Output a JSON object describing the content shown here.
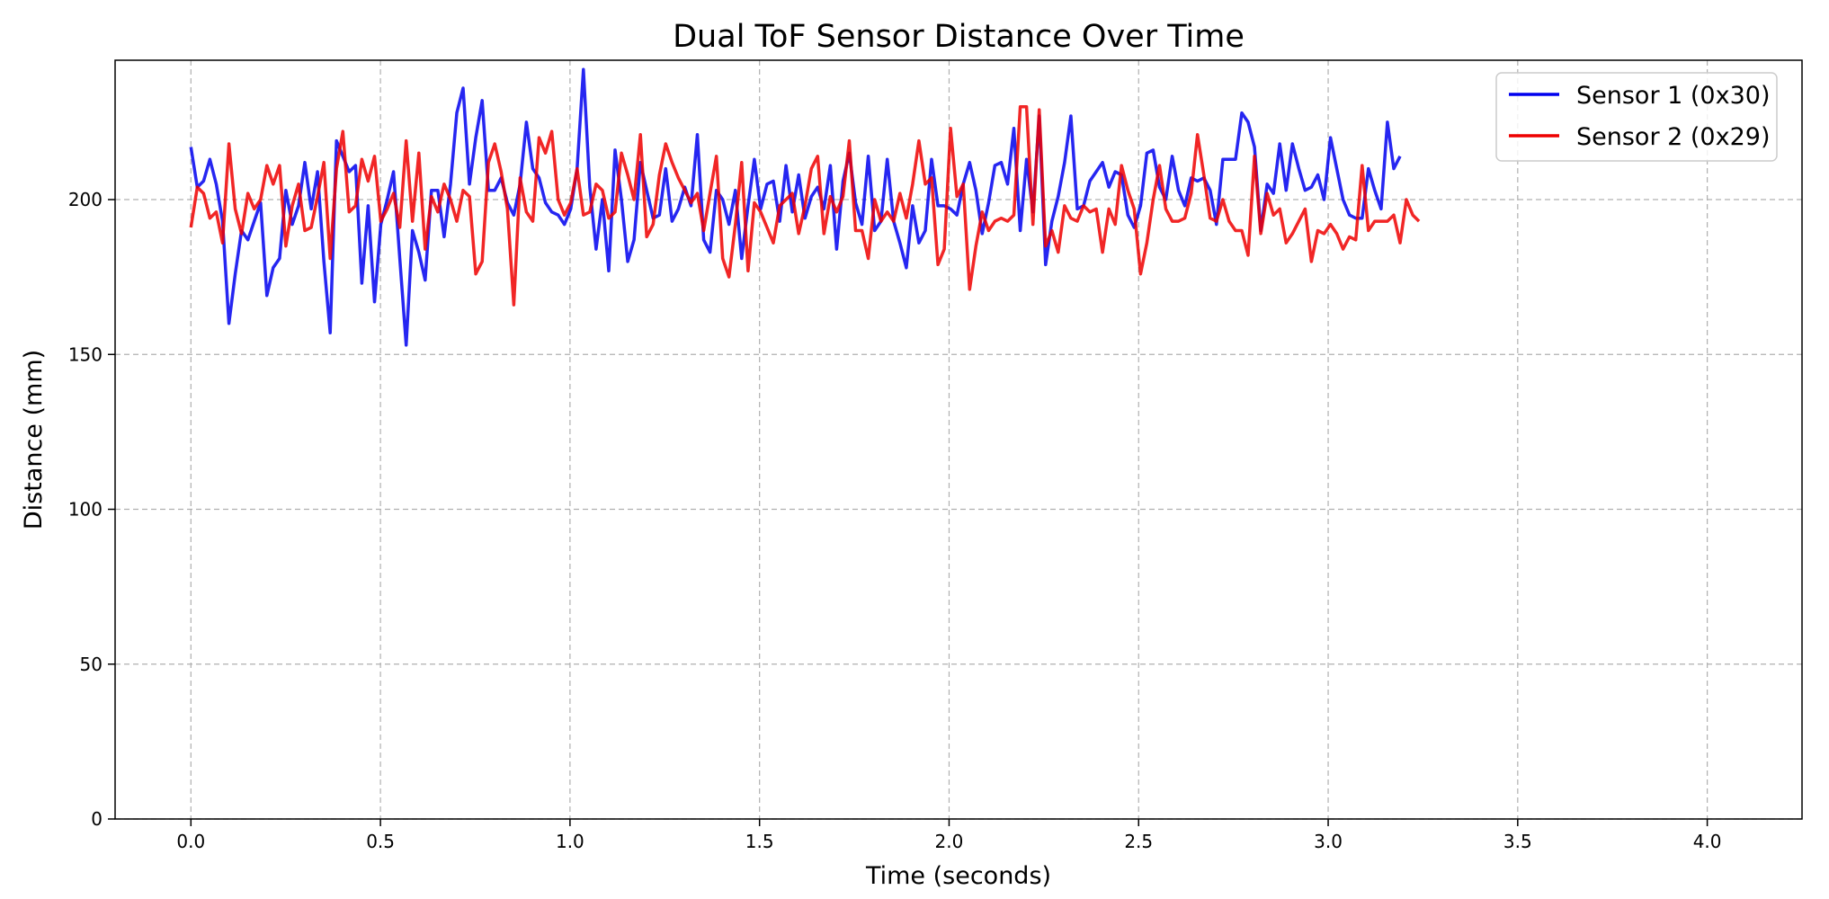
{
  "chart_data": {
    "type": "line",
    "title": "Dual ToF Sensor Distance Over Time",
    "xlabel": "Time (seconds)",
    "ylabel": "Distance (mm)",
    "xlim": [
      -0.2,
      4.25
    ],
    "ylim": [
      0,
      245
    ],
    "xticks": [
      0.0,
      0.5,
      1.0,
      1.5,
      2.0,
      2.5,
      3.0,
      3.5,
      4.0
    ],
    "xtick_labels": [
      "0.0",
      "0.5",
      "1.0",
      "1.5",
      "2.0",
      "2.5",
      "3.0",
      "3.5",
      "4.0"
    ],
    "yticks": [
      0,
      50,
      100,
      150,
      200
    ],
    "ytick_labels": [
      "0",
      "50",
      "100",
      "150",
      "200"
    ],
    "grid": true,
    "legend_position": "top-right",
    "sample_interval": 0.0167,
    "series": [
      {
        "name": "Sensor 1 (0x30)",
        "color": "#0000ee",
        "values": [
          217,
          204,
          206,
          213,
          205,
          193,
          160,
          176,
          190,
          187,
          193,
          199,
          169,
          178,
          181,
          203,
          192,
          198,
          212,
          197,
          209,
          180,
          157,
          219,
          214,
          209,
          211,
          173,
          198,
          167,
          192,
          200,
          209,
          181,
          153,
          190,
          183,
          174,
          203,
          203,
          188,
          205,
          228,
          236,
          205,
          220,
          232,
          203,
          203,
          207,
          199,
          195,
          205,
          225,
          210,
          207,
          199,
          196,
          195,
          192,
          197,
          210,
          242,
          204,
          184,
          200,
          177,
          216,
          200,
          180,
          187,
          212,
          203,
          194,
          195,
          210,
          193,
          197,
          204,
          198,
          221,
          187,
          183,
          203,
          200,
          192,
          203,
          181,
          198,
          213,
          197,
          205,
          206,
          193,
          211,
          196,
          208,
          194,
          201,
          204,
          197,
          211,
          184,
          206,
          215,
          199,
          192,
          214,
          190,
          193,
          213,
          193,
          186,
          178,
          198,
          186,
          190,
          213,
          198,
          198,
          197,
          195,
          205,
          212,
          203,
          189,
          199,
          211,
          212,
          205,
          223,
          190,
          213,
          196,
          227,
          179,
          193,
          201,
          212,
          227,
          197,
          198,
          206,
          209,
          212,
          204,
          209,
          208,
          195,
          191,
          198,
          215,
          216,
          204,
          200,
          214,
          203,
          198,
          207,
          206,
          207,
          203,
          192,
          213,
          213,
          213,
          228,
          225,
          217,
          190,
          205,
          202,
          218,
          203,
          218,
          210,
          203,
          204,
          208,
          200,
          220,
          210,
          200,
          195,
          194,
          194,
          210,
          203,
          197,
          225,
          210,
          214
        ]
      },
      {
        "name": "Sensor 2 (0x29)",
        "color": "#ee0000",
        "values": [
          191,
          204,
          202,
          194,
          196,
          186,
          218,
          197,
          189,
          202,
          197,
          200,
          211,
          205,
          211,
          185,
          198,
          205,
          190,
          191,
          201,
          212,
          181,
          210,
          222,
          196,
          198,
          213,
          206,
          214,
          193,
          197,
          202,
          191,
          219,
          193,
          215,
          184,
          201,
          196,
          205,
          200,
          193,
          203,
          201,
          176,
          180,
          212,
          218,
          209,
          197,
          166,
          207,
          196,
          193,
          220,
          215,
          222,
          200,
          195,
          199,
          210,
          195,
          196,
          205,
          203,
          194,
          196,
          215,
          208,
          200,
          221,
          188,
          192,
          208,
          218,
          212,
          207,
          203,
          199,
          202,
          190,
          202,
          214,
          181,
          175,
          192,
          212,
          177,
          199,
          196,
          191,
          186,
          198,
          200,
          202,
          189,
          198,
          210,
          214,
          189,
          201,
          196,
          201,
          219,
          190,
          190,
          181,
          200,
          193,
          196,
          193,
          202,
          194,
          205,
          219,
          205,
          207,
          179,
          184,
          223,
          201,
          205,
          171,
          185,
          196,
          190,
          193,
          194,
          193,
          195,
          230,
          230,
          192,
          229,
          185,
          190,
          183,
          198,
          194,
          193,
          198,
          196,
          197,
          183,
          197,
          192,
          211,
          203,
          197,
          176,
          186,
          200,
          211,
          197,
          193,
          193,
          194,
          202,
          221,
          208,
          194,
          193,
          200,
          193,
          190,
          190,
          182,
          214,
          189,
          202,
          195,
          197,
          186,
          189,
          193,
          197,
          180,
          190,
          189,
          192,
          189,
          184,
          188,
          187,
          211,
          190,
          193,
          193,
          193,
          195,
          186,
          200,
          195,
          193
        ]
      }
    ]
  }
}
